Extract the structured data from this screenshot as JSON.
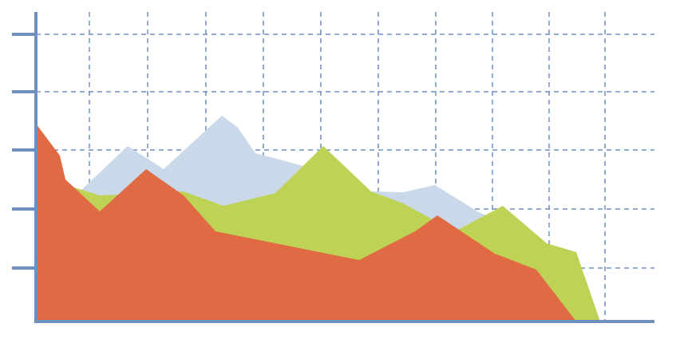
{
  "chart_data": {
    "type": "area",
    "xlim": [
      0,
      775
    ],
    "ylim": [
      0,
      390
    ],
    "xticks": [
      67,
      140,
      213,
      285,
      357,
      429,
      501,
      572,
      643,
      713
    ],
    "yticks": [
      67,
      141,
      215,
      288,
      360
    ],
    "grid": true,
    "axis_color": "#6f8fbf",
    "series": [
      {
        "color": "#c9d9ea",
        "x": [
          0,
          55,
          115,
          160,
          233,
          253,
          275,
          335,
          420,
          460,
          500,
          555,
          635,
          695
        ],
        "values": [
          153,
          163,
          220,
          191,
          258,
          243,
          211,
          195,
          163,
          162,
          171,
          137,
          103,
          0
        ]
      },
      {
        "color": "#bed356",
        "x": [
          0,
          80,
          185,
          235,
          300,
          360,
          420,
          460,
          525,
          585,
          640,
          677,
          707
        ],
        "values": [
          183,
          158,
          163,
          145,
          161,
          220,
          163,
          148,
          113,
          145,
          98,
          87,
          0
        ]
      },
      {
        "color": "#e06a43",
        "x": [
          0,
          30,
          37,
          80,
          138,
          185,
          225,
          405,
          475,
          503,
          575,
          627,
          677
        ],
        "values": [
          248,
          208,
          178,
          138,
          191,
          158,
          113,
          77,
          113,
          133,
          85,
          65,
          0
        ]
      }
    ]
  }
}
